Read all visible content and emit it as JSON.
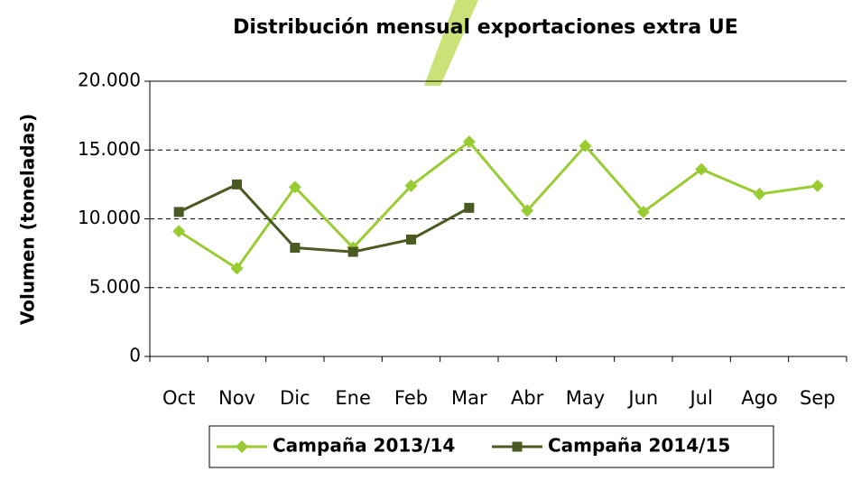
{
  "chart_data": {
    "type": "line",
    "title": "Distribución mensual exportaciones extra UE",
    "y_label": "Volumen (toneladas)",
    "categories": [
      "Oct",
      "Nov",
      "Dic",
      "Ene",
      "Feb",
      "Mar",
      "Abr",
      "May",
      "Jun",
      "Jul",
      "Ago",
      "Sep"
    ],
    "series": [
      {
        "name": "Campaña 2013/14",
        "color": "#99cc33",
        "marker": "diamond",
        "values": [
          9100,
          6400,
          12300,
          7900,
          12400,
          15600,
          10600,
          15300,
          10500,
          13600,
          11800,
          12400
        ]
      },
      {
        "name": "Campaña 2014/15",
        "color": "#4b5a23",
        "marker": "square",
        "values": [
          10500,
          12500,
          7900,
          7600,
          8500,
          10800,
          null,
          null,
          null,
          null,
          null,
          null
        ]
      }
    ],
    "ylim": [
      0,
      20000
    ],
    "yticks": [
      0,
      {
        "value": 5000,
        "label": "5.000"
      },
      {
        "value": 10000,
        "label": "10.000"
      },
      {
        "value": 15000,
        "label": "15.000"
      },
      {
        "value": 20000,
        "label": "20.000"
      }
    ],
    "grid": true,
    "legend": "bottom"
  }
}
